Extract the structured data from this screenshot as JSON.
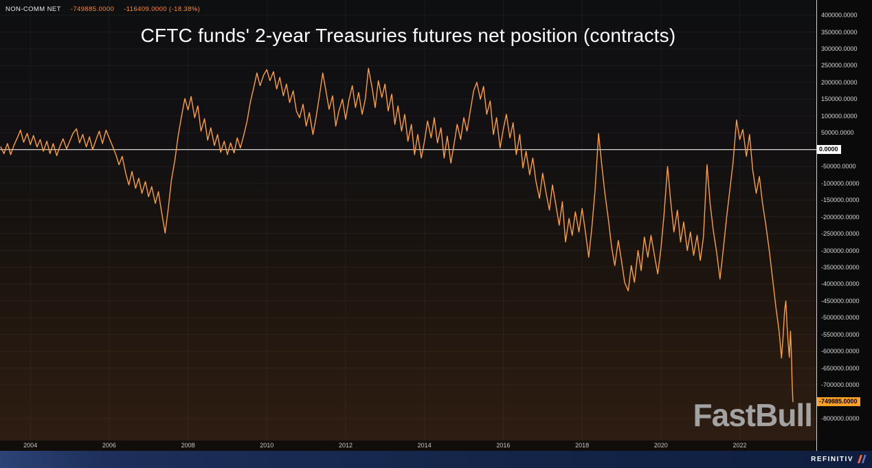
{
  "legend": {
    "series_name": "NON-COMM NET",
    "last_value": "-749885.0000",
    "change": "-116409.0000 (-18.38%)"
  },
  "title": "CFTC funds' 2-year Treasuries futures net position (contracts)",
  "watermark": "FastBull",
  "footer": {
    "brand": "REFINITIV"
  },
  "colors": {
    "line": "#ffa13b",
    "legend_value": "#ff8b26",
    "zero_line": "#eeeeee",
    "current_badge": "#ffa126",
    "zero_badge": "#ffffff",
    "axis_text": "#d9d9d9",
    "grid": "rgba(255,255,255,0.05)"
  },
  "y_axis": {
    "max": 400000,
    "min": -800000,
    "step": 50000,
    "labels": [
      {
        "value": 400000,
        "label": "400000.0000"
      },
      {
        "value": 350000,
        "label": "350000.0000"
      },
      {
        "value": 300000,
        "label": "300000.0000"
      },
      {
        "value": 250000,
        "label": "250000.0000"
      },
      {
        "value": 200000,
        "label": "200000.0000"
      },
      {
        "value": 150000,
        "label": "150000.0000"
      },
      {
        "value": 100000,
        "label": "100000.0000"
      },
      {
        "value": 50000,
        "label": "50000.0000"
      },
      {
        "value": -50000,
        "label": "-50000.0000"
      },
      {
        "value": -100000,
        "label": "-100000.0000"
      },
      {
        "value": -150000,
        "label": "-150000.0000"
      },
      {
        "value": -200000,
        "label": "-200000.0000"
      },
      {
        "value": -250000,
        "label": "-250000.0000"
      },
      {
        "value": -300000,
        "label": "-300000.0000"
      },
      {
        "value": -350000,
        "label": "-350000.0000"
      },
      {
        "value": -400000,
        "label": "-400000.0000"
      },
      {
        "value": -450000,
        "label": "-450000.0000"
      },
      {
        "value": -500000,
        "label": "-500000.0000"
      },
      {
        "value": -550000,
        "label": "-550000.0000"
      },
      {
        "value": -600000,
        "label": "-600000.0000"
      },
      {
        "value": -650000,
        "label": "-650000.0000"
      },
      {
        "value": -700000,
        "label": "-700000.0000"
      },
      {
        "value": -800000,
        "label": "-800000.0000"
      }
    ],
    "zero": {
      "value": 0,
      "label": "0.0000"
    },
    "current": {
      "value": -749885,
      "label": "-749885.0000"
    }
  },
  "x_axis": {
    "ticks": [
      {
        "value": 2004,
        "label": "2004"
      },
      {
        "value": 2006,
        "label": "2006"
      },
      {
        "value": 2008,
        "label": "2008"
      },
      {
        "value": 2010,
        "label": "2010"
      },
      {
        "value": 2012,
        "label": "2012"
      },
      {
        "value": 2014,
        "label": "2014"
      },
      {
        "value": 2016,
        "label": "2016"
      },
      {
        "value": 2018,
        "label": "2018"
      },
      {
        "value": 2020,
        "label": "2020"
      },
      {
        "value": 2022,
        "label": "2022"
      }
    ]
  },
  "chart_data": {
    "type": "line",
    "title": "CFTC funds' 2-year Treasuries futures net position (contracts)",
    "xlabel": "",
    "ylabel": "",
    "xlim": [
      2003.2,
      2023.95
    ],
    "ylim": [
      -800000,
      400000
    ],
    "grid": true,
    "zero_line": true,
    "legend_position": "top-left",
    "series": [
      {
        "name": "NON-COMM NET",
        "color": "#ffa13b",
        "points": [
          [
            2003.25,
            8000
          ],
          [
            2003.33,
            -12000
          ],
          [
            2003.42,
            18000
          ],
          [
            2003.5,
            -15000
          ],
          [
            2003.58,
            12000
          ],
          [
            2003.67,
            35000
          ],
          [
            2003.75,
            58000
          ],
          [
            2003.83,
            22000
          ],
          [
            2003.92,
            48000
          ],
          [
            2004.0,
            15000
          ],
          [
            2004.08,
            42000
          ],
          [
            2004.17,
            8000
          ],
          [
            2004.25,
            30000
          ],
          [
            2004.33,
            -5000
          ],
          [
            2004.42,
            25000
          ],
          [
            2004.5,
            -12000
          ],
          [
            2004.58,
            18000
          ],
          [
            2004.67,
            -18000
          ],
          [
            2004.75,
            10000
          ],
          [
            2004.83,
            32000
          ],
          [
            2004.92,
            2000
          ],
          [
            2005.0,
            25000
          ],
          [
            2005.08,
            48000
          ],
          [
            2005.17,
            62000
          ],
          [
            2005.25,
            20000
          ],
          [
            2005.33,
            45000
          ],
          [
            2005.42,
            8000
          ],
          [
            2005.5,
            38000
          ],
          [
            2005.58,
            0
          ],
          [
            2005.67,
            30000
          ],
          [
            2005.75,
            55000
          ],
          [
            2005.83,
            18000
          ],
          [
            2005.92,
            58000
          ],
          [
            2006.0,
            35000
          ],
          [
            2006.08,
            12000
          ],
          [
            2006.17,
            -15000
          ],
          [
            2006.25,
            -45000
          ],
          [
            2006.33,
            -20000
          ],
          [
            2006.42,
            -70000
          ],
          [
            2006.5,
            -105000
          ],
          [
            2006.58,
            -65000
          ],
          [
            2006.67,
            -115000
          ],
          [
            2006.75,
            -85000
          ],
          [
            2006.83,
            -130000
          ],
          [
            2006.92,
            -95000
          ],
          [
            2007.0,
            -140000
          ],
          [
            2007.08,
            -110000
          ],
          [
            2007.17,
            -160000
          ],
          [
            2007.25,
            -125000
          ],
          [
            2007.33,
            -185000
          ],
          [
            2007.42,
            -248000
          ],
          [
            2007.5,
            -175000
          ],
          [
            2007.58,
            -90000
          ],
          [
            2007.67,
            -30000
          ],
          [
            2007.75,
            40000
          ],
          [
            2007.83,
            95000
          ],
          [
            2007.92,
            152000
          ],
          [
            2008.0,
            118000
          ],
          [
            2008.08,
            158000
          ],
          [
            2008.17,
            95000
          ],
          [
            2008.25,
            130000
          ],
          [
            2008.33,
            55000
          ],
          [
            2008.42,
            92000
          ],
          [
            2008.5,
            28000
          ],
          [
            2008.58,
            65000
          ],
          [
            2008.67,
            12000
          ],
          [
            2008.75,
            45000
          ],
          [
            2008.83,
            -8000
          ],
          [
            2008.92,
            25000
          ],
          [
            2009.0,
            -15000
          ],
          [
            2009.08,
            20000
          ],
          [
            2009.17,
            -10000
          ],
          [
            2009.25,
            35000
          ],
          [
            2009.33,
            5000
          ],
          [
            2009.42,
            45000
          ],
          [
            2009.5,
            85000
          ],
          [
            2009.58,
            140000
          ],
          [
            2009.67,
            185000
          ],
          [
            2009.75,
            228000
          ],
          [
            2009.83,
            190000
          ],
          [
            2009.92,
            222000
          ],
          [
            2010.0,
            238000
          ],
          [
            2010.08,
            205000
          ],
          [
            2010.17,
            232000
          ],
          [
            2010.25,
            180000
          ],
          [
            2010.33,
            215000
          ],
          [
            2010.42,
            160000
          ],
          [
            2010.5,
            195000
          ],
          [
            2010.58,
            140000
          ],
          [
            2010.67,
            175000
          ],
          [
            2010.75,
            115000
          ],
          [
            2010.83,
            95000
          ],
          [
            2010.92,
            135000
          ],
          [
            2011.0,
            70000
          ],
          [
            2011.08,
            110000
          ],
          [
            2011.17,
            45000
          ],
          [
            2011.25,
            95000
          ],
          [
            2011.33,
            155000
          ],
          [
            2011.42,
            228000
          ],
          [
            2011.5,
            175000
          ],
          [
            2011.58,
            120000
          ],
          [
            2011.67,
            160000
          ],
          [
            2011.75,
            70000
          ],
          [
            2011.83,
            115000
          ],
          [
            2011.92,
            150000
          ],
          [
            2012.0,
            90000
          ],
          [
            2012.08,
            145000
          ],
          [
            2012.17,
            190000
          ],
          [
            2012.25,
            125000
          ],
          [
            2012.33,
            170000
          ],
          [
            2012.42,
            105000
          ],
          [
            2012.5,
            150000
          ],
          [
            2012.58,
            242000
          ],
          [
            2012.67,
            185000
          ],
          [
            2012.75,
            125000
          ],
          [
            2012.83,
            205000
          ],
          [
            2012.92,
            155000
          ],
          [
            2013.0,
            195000
          ],
          [
            2013.08,
            115000
          ],
          [
            2013.17,
            165000
          ],
          [
            2013.25,
            75000
          ],
          [
            2013.33,
            130000
          ],
          [
            2013.42,
            55000
          ],
          [
            2013.5,
            105000
          ],
          [
            2013.58,
            25000
          ],
          [
            2013.67,
            75000
          ],
          [
            2013.75,
            -15000
          ],
          [
            2013.83,
            45000
          ],
          [
            2013.92,
            -25000
          ],
          [
            2014.0,
            25000
          ],
          [
            2014.08,
            85000
          ],
          [
            2014.17,
            35000
          ],
          [
            2014.25,
            95000
          ],
          [
            2014.33,
            20000
          ],
          [
            2014.42,
            65000
          ],
          [
            2014.5,
            -25000
          ],
          [
            2014.58,
            40000
          ],
          [
            2014.67,
            -40000
          ],
          [
            2014.75,
            15000
          ],
          [
            2014.83,
            75000
          ],
          [
            2014.92,
            30000
          ],
          [
            2015.0,
            95000
          ],
          [
            2015.08,
            55000
          ],
          [
            2015.17,
            120000
          ],
          [
            2015.25,
            175000
          ],
          [
            2015.33,
            200000
          ],
          [
            2015.42,
            150000
          ],
          [
            2015.5,
            188000
          ],
          [
            2015.58,
            105000
          ],
          [
            2015.67,
            145000
          ],
          [
            2015.75,
            45000
          ],
          [
            2015.83,
            95000
          ],
          [
            2015.92,
            5000
          ],
          [
            2016.0,
            60000
          ],
          [
            2016.08,
            105000
          ],
          [
            2016.17,
            35000
          ],
          [
            2016.25,
            80000
          ],
          [
            2016.33,
            -15000
          ],
          [
            2016.42,
            45000
          ],
          [
            2016.5,
            -55000
          ],
          [
            2016.58,
            -5000
          ],
          [
            2016.67,
            -75000
          ],
          [
            2016.75,
            -25000
          ],
          [
            2016.83,
            -95000
          ],
          [
            2016.92,
            -145000
          ],
          [
            2017.0,
            -70000
          ],
          [
            2017.08,
            -125000
          ],
          [
            2017.17,
            -180000
          ],
          [
            2017.25,
            -105000
          ],
          [
            2017.33,
            -160000
          ],
          [
            2017.42,
            -225000
          ],
          [
            2017.5,
            -155000
          ],
          [
            2017.58,
            -275000
          ],
          [
            2017.67,
            -205000
          ],
          [
            2017.75,
            -255000
          ],
          [
            2017.83,
            -185000
          ],
          [
            2017.92,
            -245000
          ],
          [
            2018.0,
            -175000
          ],
          [
            2018.08,
            -240000
          ],
          [
            2018.17,
            -320000
          ],
          [
            2018.25,
            -230000
          ],
          [
            2018.33,
            -120000
          ],
          [
            2018.42,
            48000
          ],
          [
            2018.5,
            -45000
          ],
          [
            2018.58,
            -130000
          ],
          [
            2018.67,
            -210000
          ],
          [
            2018.75,
            -290000
          ],
          [
            2018.83,
            -345000
          ],
          [
            2018.92,
            -270000
          ],
          [
            2019.0,
            -330000
          ],
          [
            2019.08,
            -395000
          ],
          [
            2019.17,
            -420000
          ],
          [
            2019.25,
            -345000
          ],
          [
            2019.33,
            -395000
          ],
          [
            2019.42,
            -300000
          ],
          [
            2019.5,
            -360000
          ],
          [
            2019.58,
            -260000
          ],
          [
            2019.67,
            -320000
          ],
          [
            2019.75,
            -255000
          ],
          [
            2019.83,
            -310000
          ],
          [
            2019.92,
            -370000
          ],
          [
            2020.0,
            -295000
          ],
          [
            2020.08,
            -195000
          ],
          [
            2020.17,
            -50000
          ],
          [
            2020.25,
            -155000
          ],
          [
            2020.33,
            -245000
          ],
          [
            2020.42,
            -180000
          ],
          [
            2020.5,
            -275000
          ],
          [
            2020.58,
            -215000
          ],
          [
            2020.67,
            -300000
          ],
          [
            2020.75,
            -245000
          ],
          [
            2020.83,
            -315000
          ],
          [
            2020.92,
            -255000
          ],
          [
            2021.0,
            -330000
          ],
          [
            2021.08,
            -260000
          ],
          [
            2021.17,
            -45000
          ],
          [
            2021.25,
            -160000
          ],
          [
            2021.33,
            -240000
          ],
          [
            2021.42,
            -310000
          ],
          [
            2021.5,
            -385000
          ],
          [
            2021.58,
            -300000
          ],
          [
            2021.67,
            -200000
          ],
          [
            2021.75,
            -120000
          ],
          [
            2021.83,
            -40000
          ],
          [
            2021.92,
            88000
          ],
          [
            2022.0,
            30000
          ],
          [
            2022.08,
            60000
          ],
          [
            2022.17,
            -20000
          ],
          [
            2022.25,
            45000
          ],
          [
            2022.33,
            -60000
          ],
          [
            2022.42,
            -130000
          ],
          [
            2022.5,
            -80000
          ],
          [
            2022.58,
            -160000
          ],
          [
            2022.67,
            -230000
          ],
          [
            2022.75,
            -300000
          ],
          [
            2022.83,
            -380000
          ],
          [
            2022.92,
            -470000
          ],
          [
            2023.0,
            -540000
          ],
          [
            2023.06,
            -620000
          ],
          [
            2023.1,
            -560000
          ],
          [
            2023.14,
            -480000
          ],
          [
            2023.17,
            -450000
          ],
          [
            2023.2,
            -520000
          ],
          [
            2023.23,
            -575000
          ],
          [
            2023.26,
            -618000
          ],
          [
            2023.29,
            -540000
          ],
          [
            2023.31,
            -600000
          ],
          [
            2023.33,
            -690000
          ],
          [
            2023.35,
            -749885
          ]
        ]
      }
    ]
  }
}
